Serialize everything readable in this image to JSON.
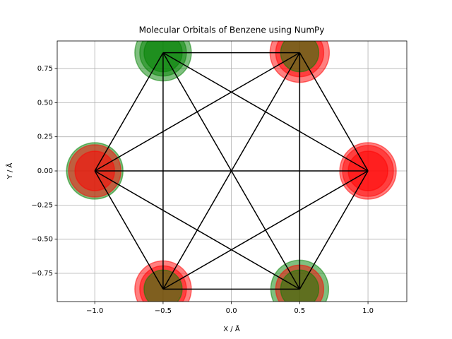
{
  "chart_data": {
    "type": "scatter",
    "title": "Molecular Orbitals of Benzene using NumPy",
    "xlabel": "X / Å",
    "ylabel": "Y / Å",
    "xlim": [
      -1.275,
      1.284
    ],
    "ylim": [
      -0.957,
      0.952
    ],
    "xticks": [
      {
        "value": -1.0,
        "label": "−1.0"
      },
      {
        "value": -0.5,
        "label": "−0.5"
      },
      {
        "value": 0.0,
        "label": "0.0"
      },
      {
        "value": 0.5,
        "label": "0.5"
      },
      {
        "value": 1.0,
        "label": "1.0"
      }
    ],
    "yticks": [
      {
        "value": -0.75,
        "label": "−0.75"
      },
      {
        "value": -0.5,
        "label": "−0.50"
      },
      {
        "value": -0.25,
        "label": "−0.25"
      },
      {
        "value": 0.0,
        "label": "0.00"
      },
      {
        "value": 0.25,
        "label": "0.25"
      },
      {
        "value": 0.5,
        "label": "0.50"
      },
      {
        "value": 0.75,
        "label": "0.75"
      }
    ],
    "grid": true,
    "atoms": {
      "x": [
        1.0,
        0.5,
        -0.5,
        -1.0,
        -0.5,
        0.5
      ],
      "y": [
        0.0,
        0.866,
        0.866,
        0.0,
        -0.866,
        -0.866
      ]
    },
    "edges": [
      [
        0,
        1
      ],
      [
        0,
        2
      ],
      [
        0,
        3
      ],
      [
        0,
        4
      ],
      [
        0,
        5
      ],
      [
        1,
        2
      ],
      [
        1,
        3
      ],
      [
        1,
        4
      ],
      [
        1,
        5
      ],
      [
        2,
        3
      ],
      [
        2,
        4
      ],
      [
        2,
        5
      ],
      [
        3,
        4
      ],
      [
        3,
        5
      ],
      [
        4,
        5
      ]
    ],
    "edge_color": "#000000",
    "alpha": 0.5,
    "series": [
      {
        "sizes": [
          40,
          42,
          40,
          40,
          40,
          41
        ],
        "colors": [
          "red",
          "red",
          "green",
          "green",
          "red",
          "green"
        ]
      },
      {
        "sizes": [
          36,
          34,
          33,
          37,
          33,
          34
        ],
        "colors": [
          "red",
          "red",
          "green",
          "red",
          "red",
          "red"
        ]
      },
      {
        "sizes": [
          28,
          27,
          27,
          28,
          27,
          27
        ],
        "colors": [
          "red",
          "green",
          "green",
          "red",
          "green",
          "green"
        ]
      }
    ]
  }
}
